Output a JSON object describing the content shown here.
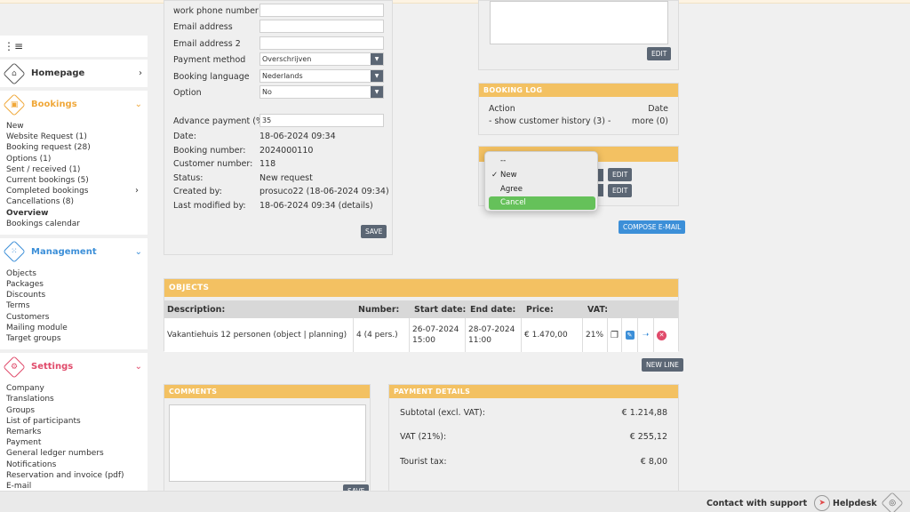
{
  "colors": {
    "accent": "#f3c162",
    "dark_button": "#5b6674",
    "blue_button": "#3c8fd8",
    "selected": "#65c15a",
    "delete": "#e04a4a"
  },
  "sidebar": {
    "toggle_icon": "hamburger-collapse-icon",
    "homepage": {
      "label": "Homepage",
      "color": "#555555"
    },
    "bookings": {
      "label": "Bookings",
      "color": "#f0a83a",
      "items": [
        "New",
        "Website Request (1)",
        "Booking request (28)",
        "Options (1)",
        "Sent / received (1)",
        "Current bookings (5)",
        "Completed bookings",
        "Cancellations (8)",
        "Overview",
        "Bookings calendar"
      ]
    },
    "management": {
      "label": "Management",
      "color": "#3c8fd8",
      "items": [
        "Objects",
        "Packages",
        "Discounts",
        "Terms",
        "Customers",
        "Mailing module",
        "Target groups"
      ]
    },
    "settings": {
      "label": "Settings",
      "color": "#e04a6a",
      "items": [
        "Company",
        "Translations",
        "Groups",
        "List of participants",
        "Remarks",
        "Payment",
        "General ledger numbers",
        "Notifications",
        "Reservation and invoice (pdf)",
        "E-mail"
      ]
    }
  },
  "form": {
    "work_phone_label": "work phone number",
    "work_phone_value": "",
    "email_label": "Email address",
    "email_value": "",
    "email2_label": "Email address 2",
    "email2_value": "",
    "payment_method_label": "Payment method",
    "payment_method_value": "Overschrijven",
    "booking_language_label": "Booking language",
    "booking_language_value": "Nederlands",
    "option_label": "Option",
    "option_value": "No",
    "advance_label": "Advance payment (%):",
    "advance_value": "35",
    "date_label": "Date:",
    "date_value": "18-06-2024 09:34",
    "booking_number_label": "Booking number:",
    "booking_number_value": "2024000110",
    "customer_number_label": "Customer number:",
    "customer_number_value": "118",
    "status_label": "Status:",
    "status_value": "New request",
    "created_label": "Created by:",
    "created_value": "prosuco22 (18-06-2024 09:34)",
    "modified_label": "Last modified by:",
    "modified_value": "18-06-2024 09:34 (details)",
    "save_label": "SAVE"
  },
  "top_right": {
    "edit_label": "EDIT"
  },
  "booking_log": {
    "title": "BOOKING LOG",
    "col_action": "Action",
    "col_date": "Date",
    "row_action": "- show customer history (3) -",
    "row_date": "more (0)"
  },
  "status_box": {
    "edit1": "EDIT",
    "edit2": "EDIT",
    "compose_label": "COMPOSE E-MAIL"
  },
  "status_dropdown": {
    "options": [
      "--",
      "New",
      "Agree",
      "Cancel"
    ],
    "checked": "New",
    "highlighted": "Cancel"
  },
  "objects": {
    "title": "OBJECTS",
    "headers": {
      "description": "Description:",
      "number": "Number:",
      "start": "Start date:",
      "end": "End date:",
      "price": "Price:",
      "vat": "VAT:"
    },
    "row": {
      "description": "Vakantiehuis 12 personen (object | planning)",
      "number": "4 (4 pers.)",
      "start": "26-07-2024 15:00",
      "end": "28-07-2024 11:00",
      "price": "€ 1.470,00",
      "vat": "21%"
    },
    "row_icons": [
      "copy-icon",
      "edit-icon",
      "move-icon",
      "delete-icon"
    ],
    "new_line_label": "NEW LINE"
  },
  "comments": {
    "title": "COMMENTS",
    "value": "",
    "save_label": "SAVE"
  },
  "payment": {
    "title": "PAYMENT DETAILS",
    "subtotal_label": "Subtotal (excl. VAT):",
    "subtotal_value": "€ 1.214,88",
    "vat_label": "VAT (21%):",
    "vat_value": "€ 255,12",
    "tourist_label": "Tourist tax:",
    "tourist_value": "€ 8,00"
  },
  "footer": {
    "support_label": "Contact with support",
    "support_icon": "paper-plane-icon",
    "helpdesk_label": "Helpdesk",
    "helpdesk_icon": "lifebuoy-icon"
  }
}
